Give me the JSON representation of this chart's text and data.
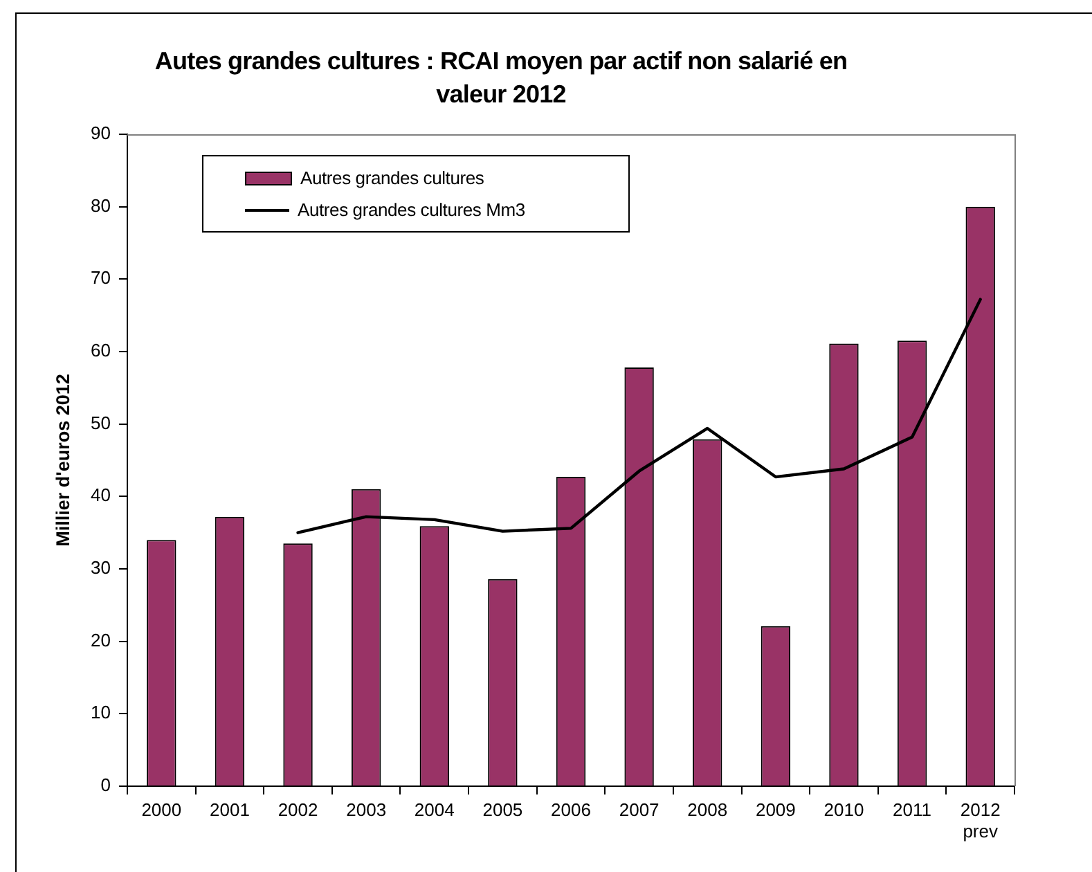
{
  "chart_data": {
    "type": "bar",
    "title": "Autes grandes cultures : RCAI moyen par actif non salarié en valeur 2012",
    "ylabel": "Millier d'euros 2012",
    "categories": [
      "2000",
      "2001",
      "2002",
      "2003",
      "2004",
      "2005",
      "2006",
      "2007",
      "2008",
      "2009",
      "2010",
      "2011",
      "2012\nprev"
    ],
    "series": [
      {
        "name": "Autres grandes cultures",
        "color": "#993366",
        "values": [
          34,
          37.2,
          33.5,
          41,
          35.9,
          28.6,
          42.7,
          57.8,
          47.9,
          22.1,
          61.1,
          61.5,
          80
        ]
      },
      {
        "name": "Autres grandes cultures Mm3",
        "type": "line",
        "color": "#000000",
        "values": [
          null,
          null,
          35,
          37.2,
          36.8,
          35.2,
          35.6,
          43.5,
          49.4,
          42.7,
          43.8,
          48.2,
          67.2
        ]
      }
    ],
    "ylim": [
      0,
      90
    ],
    "yticks": [
      0,
      10,
      20,
      30,
      40,
      50,
      60,
      70,
      80,
      90
    ],
    "legend": "top left",
    "marker": "none"
  }
}
